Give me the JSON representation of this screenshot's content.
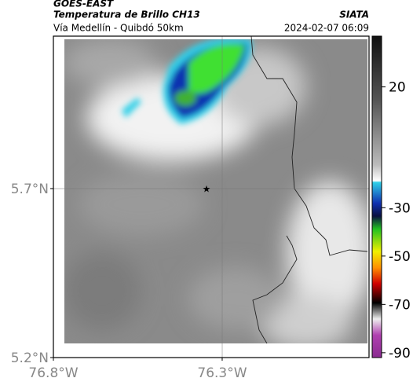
{
  "header": {
    "source": "GOES-EAST",
    "product": "Temperatura de Brillo CH13",
    "region": "Vía Medellín - Quibdó 50km",
    "agency": "SIATA",
    "datetime": "2024-02-07 06:09"
  },
  "map": {
    "latlim": [
      5.2,
      6.151
    ],
    "lonlim": [
      -76.8,
      -75.865
    ],
    "latticks": [
      {
        "value": 5.7,
        "label": "5.7°N"
      },
      {
        "value": 5.2,
        "label": "5.2°N"
      }
    ],
    "lonticks": [
      {
        "value": -76.8,
        "label": "76.8°W"
      },
      {
        "value": -76.3,
        "label": "76.3°W"
      }
    ]
  },
  "colorbar": {
    "lim": [
      41,
      -92
    ],
    "ticks": [
      20,
      -30,
      -50,
      -70,
      -90
    ]
  }
}
